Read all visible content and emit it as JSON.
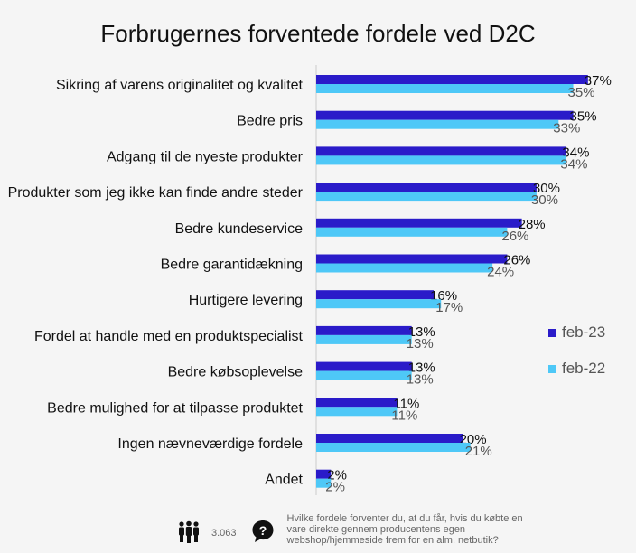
{
  "chart_data": {
    "type": "bar",
    "orientation": "horizontal",
    "title": "Forbrugernes forventede fordele ved D2C",
    "categories": [
      "Sikring af varens originalitet og kvalitet",
      "Bedre pris",
      "Adgang til de nyeste produkter",
      "Produkter som jeg ikke kan finde andre steder",
      "Bedre kundeservice",
      "Bedre garantidækning",
      "Hurtigere levering",
      "Fordel at handle med en produktspecialist",
      "Bedre købsoplevelse",
      "Bedre mulighed for at tilpasse produktet",
      "Ingen nævneværdige fordele",
      "Andet"
    ],
    "series": [
      {
        "name": "feb-23",
        "color": "#2a1bc9",
        "values": [
          37,
          35,
          34,
          30,
          28,
          26,
          16,
          13,
          13,
          11,
          20,
          2
        ]
      },
      {
        "name": "feb-22",
        "color": "#4ec8f7",
        "values": [
          35,
          33,
          34,
          30,
          26,
          24,
          17,
          13,
          13,
          11,
          21,
          2
        ]
      }
    ],
    "unit": "%",
    "xlim": [
      0,
      40
    ],
    "grid": false,
    "legend_position": "right"
  },
  "footer": {
    "respondents_icon": "people-icon",
    "respondents": "3.063",
    "question_icon": "question-bubble-icon",
    "question": "Hvilke fordele forventer du, at du får, hvis du købte en vare direkte gennem producentens egen webshop/hjemmeside frem for en alm. netbutik?"
  }
}
